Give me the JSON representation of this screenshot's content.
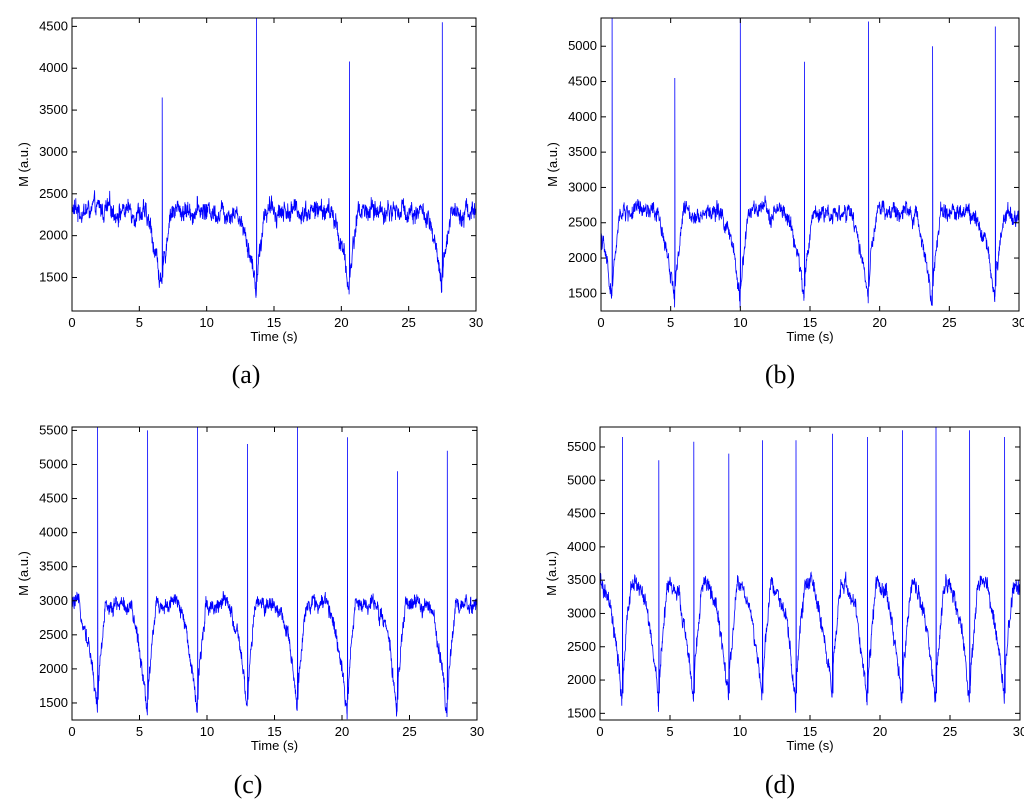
{
  "panels": [
    {
      "label": "(a)",
      "letter": "a"
    },
    {
      "label": "(b)",
      "letter": "b"
    },
    {
      "label": "(c)",
      "letter": "c"
    },
    {
      "label": "(d)",
      "letter": "d"
    }
  ],
  "colors": {
    "line": "#0000ff",
    "axes": "#000000",
    "background": "#ffffff"
  },
  "chart_data": [
    {
      "type": "line",
      "xlabel": "Time (s)",
      "ylabel": "M (a.u.)",
      "xlim": [
        0,
        30
      ],
      "ylim": [
        1100,
        4600
      ],
      "xticks": [
        0,
        5,
        10,
        15,
        20,
        25,
        30
      ],
      "yticks": [
        1500,
        2000,
        2500,
        3000,
        3500,
        4000,
        4500
      ],
      "grid": false,
      "series": [
        {
          "baseline": 2300,
          "noise_amplitude": 180,
          "trough_level": 1300,
          "beats": [
            {
              "t": 6.7,
              "peak": 3650
            },
            {
              "t": 13.7,
              "peak": 4600
            },
            {
              "t": 20.6,
              "peak": 4080
            },
            {
              "t": 27.5,
              "peak": 4550
            }
          ]
        }
      ]
    },
    {
      "type": "line",
      "xlabel": "Time (s)",
      "ylabel": "M (a.u.)",
      "xlim": [
        0,
        30
      ],
      "ylim": [
        1250,
        5400
      ],
      "xticks": [
        0,
        5,
        10,
        15,
        20,
        25,
        30
      ],
      "yticks": [
        1500,
        2000,
        2500,
        3000,
        3500,
        4000,
        4500,
        5000
      ],
      "grid": false,
      "series": [
        {
          "baseline": 2650,
          "noise_amplitude": 180,
          "trough_level": 1400,
          "beats": [
            {
              "t": 0.8,
              "peak": 5400
            },
            {
              "t": 5.3,
              "peak": 4550
            },
            {
              "t": 10.0,
              "peak": 5400
            },
            {
              "t": 14.6,
              "peak": 4780
            },
            {
              "t": 19.2,
              "peak": 5350
            },
            {
              "t": 23.8,
              "peak": 5000
            },
            {
              "t": 28.3,
              "peak": 5280
            }
          ]
        }
      ]
    },
    {
      "type": "line",
      "xlabel": "Time (s)",
      "ylabel": "M (a.u.)",
      "xlim": [
        0,
        30
      ],
      "ylim": [
        1250,
        5550
      ],
      "xticks": [
        0,
        5,
        10,
        15,
        20,
        25,
        30
      ],
      "yticks": [
        1500,
        2000,
        2500,
        3000,
        3500,
        4000,
        4500,
        5000,
        5500
      ],
      "grid": false,
      "series": [
        {
          "baseline": 2950,
          "noise_amplitude": 180,
          "trough_level": 1350,
          "beats": [
            {
              "t": 1.9,
              "peak": 5550
            },
            {
              "t": 5.6,
              "peak": 5500
            },
            {
              "t": 9.3,
              "peak": 5550
            },
            {
              "t": 13.0,
              "peak": 5300
            },
            {
              "t": 16.7,
              "peak": 5550
            },
            {
              "t": 20.4,
              "peak": 5400
            },
            {
              "t": 24.1,
              "peak": 4900
            },
            {
              "t": 27.8,
              "peak": 5200
            }
          ]
        }
      ]
    },
    {
      "type": "line",
      "xlabel": "Time (s)",
      "ylabel": "M (a.u.)",
      "xlim": [
        0,
        30
      ],
      "ylim": [
        1400,
        5800
      ],
      "xticks": [
        0,
        5,
        10,
        15,
        20,
        25,
        30
      ],
      "yticks": [
        1500,
        2000,
        2500,
        3000,
        3500,
        4000,
        4500,
        5000,
        5500
      ],
      "grid": false,
      "series": [
        {
          "baseline": 3450,
          "noise_amplitude": 200,
          "trough_level": 1600,
          "beats": [
            {
              "t": 1.6,
              "peak": 5650
            },
            {
              "t": 4.2,
              "peak": 5300
            },
            {
              "t": 6.7,
              "peak": 5580
            },
            {
              "t": 9.2,
              "peak": 5400
            },
            {
              "t": 11.6,
              "peak": 5600
            },
            {
              "t": 14.0,
              "peak": 5600
            },
            {
              "t": 16.6,
              "peak": 5700
            },
            {
              "t": 19.1,
              "peak": 5650
            },
            {
              "t": 21.6,
              "peak": 5750
            },
            {
              "t": 24.0,
              "peak": 5800
            },
            {
              "t": 26.4,
              "peak": 5750
            },
            {
              "t": 28.9,
              "peak": 5650
            }
          ]
        }
      ]
    }
  ]
}
